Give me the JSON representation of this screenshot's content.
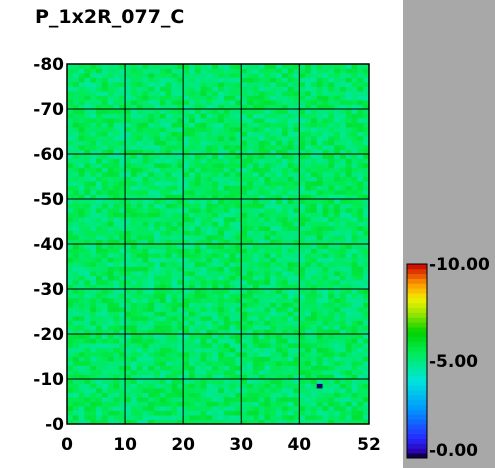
{
  "title": "P_1x2R_077_C",
  "chart_data": {
    "type": "heatmap",
    "title": "P_1x2R_077_C",
    "xlim": [
      0,
      52
    ],
    "ylim": [
      0,
      80
    ],
    "x_ticks": [
      "0",
      "10",
      "20",
      "30",
      "40",
      "52"
    ],
    "y_ticks": [
      "0",
      "10",
      "20",
      "30",
      "40",
      "50",
      "60",
      "70",
      "80"
    ],
    "y_tick_prefix": "-",
    "grid": true,
    "field_value": 5.3,
    "field_noise": 0.6,
    "outliers": [
      {
        "x": 43,
        "y": 8,
        "value": 0.2
      }
    ],
    "colorbar": {
      "range": [
        0,
        10
      ],
      "tick_labels": [
        "10.00",
        "5.00",
        "0.00"
      ],
      "tick_prefix": "-"
    }
  }
}
